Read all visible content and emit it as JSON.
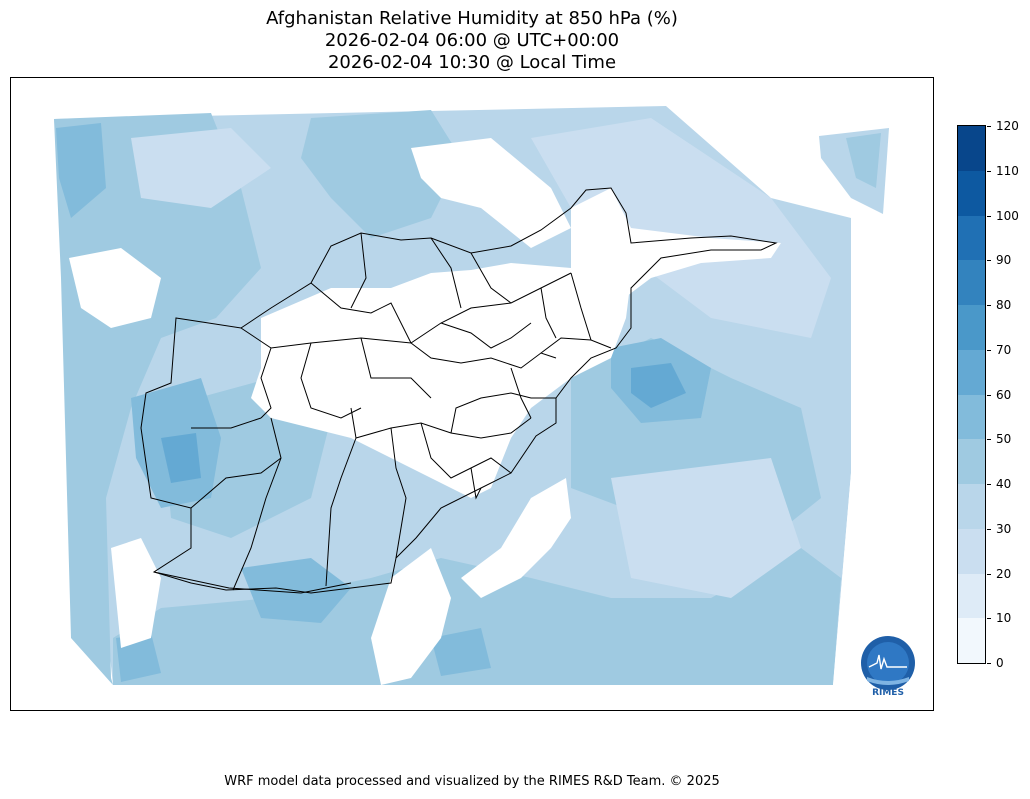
{
  "title": {
    "line1": "Afghanistan Relative Humidity at 850 hPa (%)",
    "line2": "2026-02-04 06:00 @ UTC+00:00",
    "line3": "2026-02-04 10:30 @ Local Time"
  },
  "colorbar": {
    "ticks": [
      "0",
      "10",
      "20",
      "30",
      "40",
      "50",
      "60",
      "70",
      "80",
      "90",
      "100",
      "110",
      "120"
    ],
    "levels": [
      0,
      10,
      20,
      30,
      40,
      50,
      60,
      70,
      80,
      90,
      100,
      110,
      120
    ],
    "colors": [
      "#f2f8fd",
      "#deebf7",
      "#cadef0",
      "#b9d6ea",
      "#9fcae1",
      "#82bbdb",
      "#64a9d3",
      "#4a98c9",
      "#3383be",
      "#2070b4",
      "#0d59a1",
      "#08468b"
    ]
  },
  "logo": {
    "text": "RIMES"
  },
  "footer": "WRF model data processed and visualized by the RIMES R&D Team. © 2025",
  "colors": {
    "frame": "#000000",
    "borders": "#000000",
    "nodata": "#ffffff"
  }
}
